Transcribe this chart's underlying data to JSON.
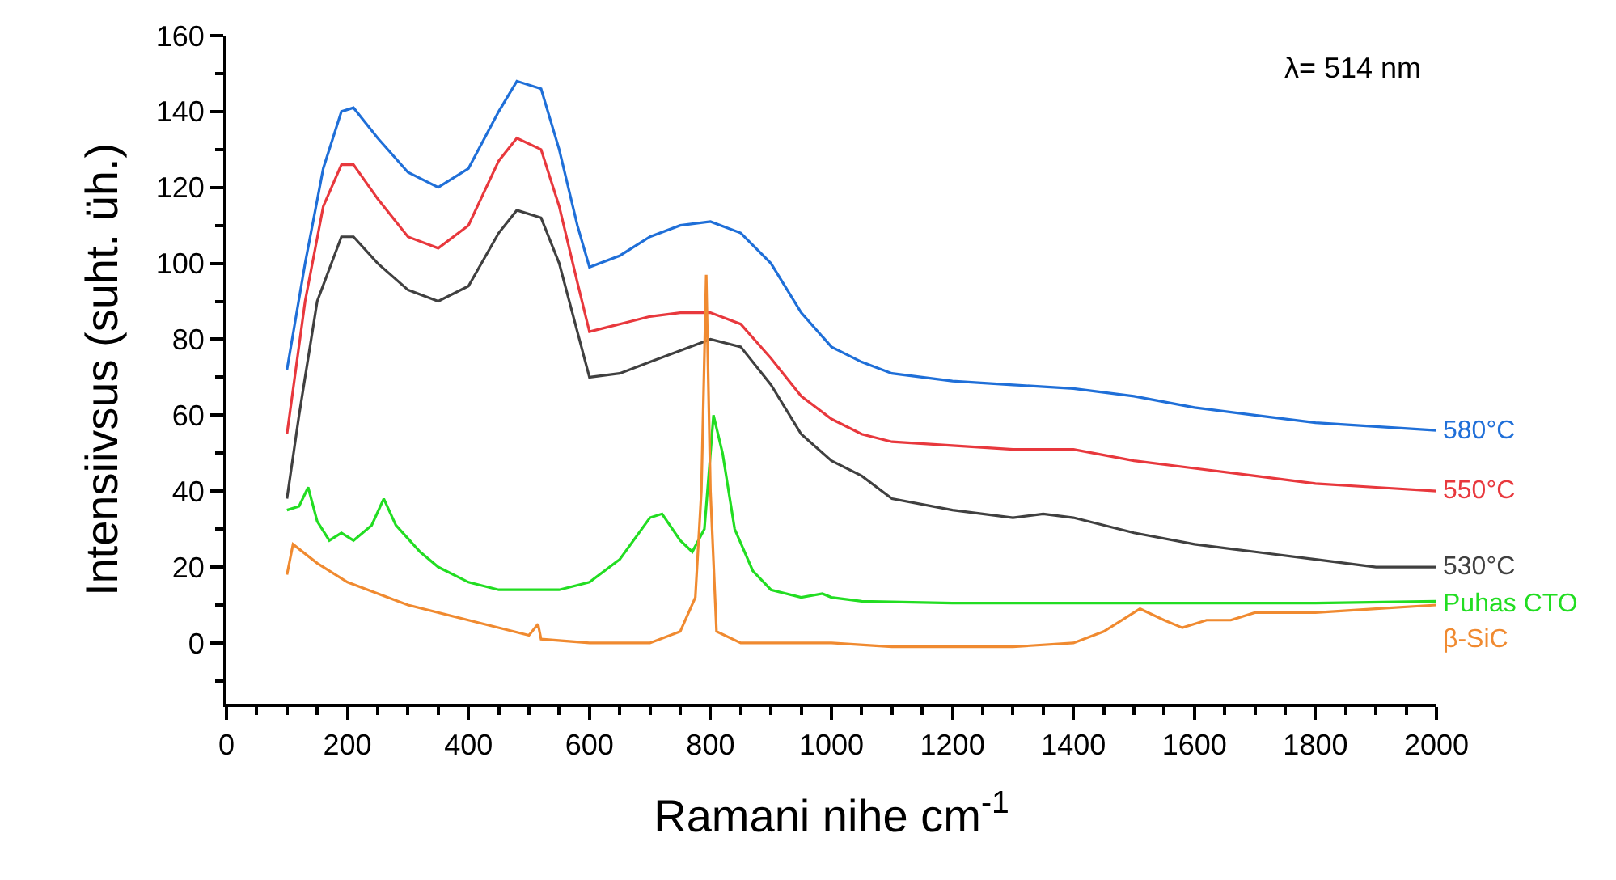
{
  "chart_data": {
    "type": "line",
    "xlabel": "Ramani nihe cm$^{-1}$",
    "ylabel": "Intensiivsus (suht. üh.)",
    "xlim": [
      0,
      2000
    ],
    "ylim": [
      -16,
      160
    ],
    "xticks": [
      0,
      200,
      400,
      600,
      800,
      1000,
      1200,
      1400,
      1600,
      1800,
      2000
    ],
    "yticks": [
      0,
      20,
      40,
      60,
      80,
      100,
      120,
      140,
      160
    ],
    "legend": false,
    "marker": "none",
    "line_style": "solid",
    "annotations": [
      "λ= 514 nm"
    ],
    "series": [
      {
        "name": "580°C",
        "color": "#1f6fd8",
        "x": [
          100,
          130,
          160,
          190,
          210,
          250,
          300,
          350,
          400,
          450,
          480,
          520,
          550,
          580,
          600,
          650,
          700,
          750,
          800,
          850,
          900,
          950,
          1000,
          1050,
          1100,
          1200,
          1300,
          1400,
          1500,
          1600,
          1700,
          1800,
          1900,
          2000
        ],
        "values": [
          72,
          100,
          125,
          140,
          141,
          133,
          124,
          120,
          125,
          140,
          148,
          146,
          130,
          110,
          99,
          102,
          107,
          110,
          111,
          108,
          100,
          87,
          78,
          74,
          71,
          69,
          68,
          67,
          65,
          62,
          60,
          58,
          57,
          56
        ]
      },
      {
        "name": "550°C",
        "color": "#e8383d",
        "x": [
          100,
          130,
          160,
          190,
          210,
          250,
          300,
          350,
          400,
          450,
          480,
          520,
          550,
          580,
          600,
          650,
          700,
          750,
          800,
          850,
          900,
          950,
          1000,
          1050,
          1100,
          1200,
          1300,
          1400,
          1500,
          1600,
          1700,
          1800,
          1900,
          2000
        ],
        "values": [
          55,
          90,
          115,
          126,
          126,
          117,
          107,
          104,
          110,
          127,
          133,
          130,
          115,
          95,
          82,
          84,
          86,
          87,
          87,
          84,
          75,
          65,
          59,
          55,
          53,
          52,
          51,
          51,
          48,
          46,
          44,
          42,
          41,
          40
        ]
      },
      {
        "name": "530°C",
        "color": "#404040",
        "x": [
          100,
          120,
          150,
          190,
          210,
          250,
          300,
          350,
          400,
          450,
          480,
          520,
          550,
          580,
          600,
          650,
          700,
          750,
          800,
          850,
          900,
          950,
          1000,
          1050,
          1100,
          1200,
          1300,
          1350,
          1400,
          1500,
          1600,
          1700,
          1800,
          1900,
          2000
        ],
        "values": [
          38,
          60,
          90,
          107,
          107,
          100,
          93,
          90,
          94,
          108,
          114,
          112,
          100,
          82,
          70,
          71,
          74,
          77,
          80,
          78,
          68,
          55,
          48,
          44,
          38,
          35,
          33,
          34,
          33,
          29,
          26,
          24,
          22,
          20,
          20
        ]
      },
      {
        "name": "Puhas CTO",
        "color": "#22dd22",
        "x": [
          100,
          120,
          135,
          150,
          170,
          190,
          210,
          240,
          260,
          280,
          320,
          350,
          400,
          450,
          500,
          550,
          600,
          650,
          700,
          720,
          750,
          770,
          790,
          805,
          820,
          840,
          870,
          900,
          950,
          985,
          1000,
          1050,
          1200,
          1500,
          1800,
          2000
        ],
        "values": [
          35,
          36,
          41,
          32,
          27,
          29,
          27,
          31,
          38,
          31,
          24,
          20,
          16,
          14,
          14,
          14,
          16,
          22,
          33,
          34,
          27,
          24,
          30,
          60,
          50,
          30,
          19,
          14,
          12,
          13,
          12,
          11,
          10.5,
          10.5,
          10.5,
          11
        ]
      },
      {
        "name": "β-SiC",
        "color": "#f08a30",
        "x": [
          100,
          110,
          150,
          200,
          300,
          400,
          500,
          515,
          520,
          600,
          700,
          750,
          775,
          785,
          793,
          800,
          810,
          850,
          900,
          1000,
          1100,
          1200,
          1300,
          1400,
          1450,
          1510,
          1550,
          1580,
          1620,
          1660,
          1700,
          1750,
          1800,
          1900,
          2000
        ],
        "values": [
          18,
          26,
          21,
          16,
          10,
          6,
          2,
          5,
          1,
          0,
          0,
          3,
          12,
          40,
          97,
          40,
          3,
          0,
          0,
          0,
          -1,
          -1,
          -1,
          0,
          3,
          9,
          6,
          4,
          6,
          6,
          8,
          8,
          8,
          9,
          10
        ]
      }
    ]
  }
}
